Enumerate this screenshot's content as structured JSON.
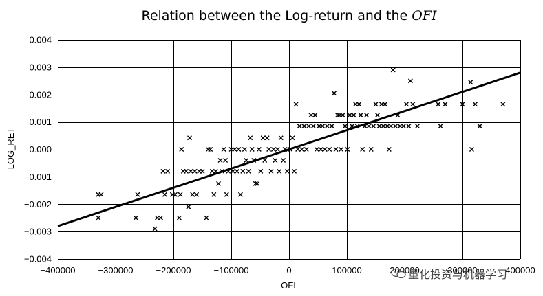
{
  "chart_data": {
    "type": "scatter",
    "title_prefix": "Relation between the Log-return and the ",
    "title_italic": "OFI",
    "xlabel": "OFI",
    "ylabel": "LOG_RET",
    "xlim": [
      -400000,
      400000
    ],
    "ylim": [
      -0.004,
      0.004
    ],
    "x_ticks": [
      -400000,
      -300000,
      -200000,
      -100000,
      0,
      100000,
      200000,
      300000,
      400000
    ],
    "x_tick_labels": [
      "−400000",
      "−300000",
      "−200000",
      "−100000",
      "0",
      "100000",
      "200000",
      "300000",
      "400000"
    ],
    "y_ticks": [
      -0.004,
      -0.003,
      -0.002,
      -0.001,
      0.0,
      0.001,
      0.002,
      0.003,
      0.004
    ],
    "y_tick_labels": [
      "−0.004",
      "−0.003",
      "−0.002",
      "−0.001",
      "0.000",
      "0.001",
      "0.002",
      "0.003",
      "0.004"
    ],
    "grid": true,
    "fit_line": {
      "x": [
        -400000,
        400000
      ],
      "y": [
        -0.0028,
        0.0028
      ]
    },
    "points": [
      [
        -330000,
        -0.00165
      ],
      [
        -325000,
        -0.00165
      ],
      [
        -330000,
        -0.0025
      ],
      [
        -265000,
        -0.0025
      ],
      [
        -262000,
        -0.00165
      ],
      [
        -232000,
        -0.0029
      ],
      [
        -228000,
        -0.0025
      ],
      [
        -222000,
        -0.0025
      ],
      [
        -218000,
        -0.0008
      ],
      [
        -215000,
        -0.00165
      ],
      [
        -210000,
        -0.0008
      ],
      [
        -202000,
        -0.00165
      ],
      [
        -197000,
        -0.00165
      ],
      [
        -190000,
        -0.0025
      ],
      [
        -188000,
        -0.00165
      ],
      [
        -186000,
        0.0
      ],
      [
        -183000,
        -0.0008
      ],
      [
        -178000,
        -0.0008
      ],
      [
        -174000,
        -0.0021
      ],
      [
        -172000,
        0.00042
      ],
      [
        -170000,
        -0.0008
      ],
      [
        -167000,
        -0.00165
      ],
      [
        -163000,
        -0.0008
      ],
      [
        -160000,
        -0.00165
      ],
      [
        -155000,
        -0.0008
      ],
      [
        -150000,
        -0.0008
      ],
      [
        -143000,
        -0.0025
      ],
      [
        -140000,
        0.0
      ],
      [
        -136000,
        0.0
      ],
      [
        -133000,
        -0.0008
      ],
      [
        -130000,
        -0.00165
      ],
      [
        -127000,
        -0.0008
      ],
      [
        -122000,
        -0.00125
      ],
      [
        -119000,
        -0.0004
      ],
      [
        -116000,
        -0.0008
      ],
      [
        -113000,
        0.0
      ],
      [
        -110000,
        -0.0004
      ],
      [
        -108000,
        -0.00165
      ],
      [
        -105000,
        -0.0008
      ],
      [
        -100000,
        0.0
      ],
      [
        -97000,
        -0.0008
      ],
      [
        -94000,
        0.0
      ],
      [
        -90000,
        -0.0008
      ],
      [
        -87000,
        0.0
      ],
      [
        -84000,
        -0.00165
      ],
      [
        -80000,
        -0.0008
      ],
      [
        -77000,
        0.0
      ],
      [
        -74000,
        -0.0004
      ],
      [
        -70000,
        -0.0008
      ],
      [
        -67000,
        0.00042
      ],
      [
        -64000,
        0.0
      ],
      [
        -61000,
        -0.0004
      ],
      [
        -58000,
        -0.00125
      ],
      [
        -55000,
        -0.00125
      ],
      [
        -52000,
        0.0
      ],
      [
        -49000,
        -0.0008
      ],
      [
        -45000,
        0.00042
      ],
      [
        -42000,
        -0.0004
      ],
      [
        -38000,
        0.00042
      ],
      [
        -35000,
        0.0
      ],
      [
        -31000,
        -0.0008
      ],
      [
        -27000,
        0.0
      ],
      [
        -24000,
        -0.0004
      ],
      [
        -20000,
        0.0
      ],
      [
        -17000,
        -0.0008
      ],
      [
        -14000,
        0.00042
      ],
      [
        -10000,
        -0.0004
      ],
      [
        -7000,
        0.0
      ],
      [
        -3000,
        -0.0008
      ],
      [
        2000,
        0.0
      ],
      [
        6000,
        0.00042
      ],
      [
        9000,
        -0.0008
      ],
      [
        12000,
        0.00165
      ],
      [
        15000,
        0.0
      ],
      [
        18000,
        0.00085
      ],
      [
        22000,
        0.0
      ],
      [
        26000,
        0.00085
      ],
      [
        30000,
        0.0
      ],
      [
        34000,
        0.00085
      ],
      [
        38000,
        0.00125
      ],
      [
        42000,
        0.00085
      ],
      [
        45000,
        0.00125
      ],
      [
        48000,
        0.0
      ],
      [
        52000,
        0.00085
      ],
      [
        55000,
        0.0
      ],
      [
        58000,
        0.00085
      ],
      [
        62000,
        0.0
      ],
      [
        66000,
        0.00085
      ],
      [
        70000,
        0.0
      ],
      [
        74000,
        0.00085
      ],
      [
        78000,
        0.00205
      ],
      [
        81000,
        0.0
      ],
      [
        84000,
        0.00125
      ],
      [
        87000,
        0.00125
      ],
      [
        90000,
        0.0
      ],
      [
        93000,
        0.00125
      ],
      [
        97000,
        0.00085
      ],
      [
        101000,
        0.0
      ],
      [
        105000,
        0.00125
      ],
      [
        109000,
        0.00085
      ],
      [
        112000,
        0.00125
      ],
      [
        115000,
        0.00165
      ],
      [
        118000,
        0.00085
      ],
      [
        121000,
        0.00165
      ],
      [
        124000,
        0.00125
      ],
      [
        127000,
        0.0
      ],
      [
        131000,
        0.00085
      ],
      [
        134000,
        0.00125
      ],
      [
        138000,
        0.00085
      ],
      [
        142000,
        0.0
      ],
      [
        146000,
        0.00085
      ],
      [
        150000,
        0.00165
      ],
      [
        153000,
        0.00125
      ],
      [
        156000,
        0.00085
      ],
      [
        160000,
        0.00165
      ],
      [
        163000,
        0.00085
      ],
      [
        166000,
        0.00165
      ],
      [
        170000,
        0.00085
      ],
      [
        173000,
        0.0
      ],
      [
        176000,
        0.00085
      ],
      [
        180000,
        0.0029
      ],
      [
        184000,
        0.00085
      ],
      [
        188000,
        0.00125
      ],
      [
        192000,
        0.00085
      ],
      [
        198000,
        0.00085
      ],
      [
        203000,
        0.00165
      ],
      [
        207000,
        0.00085
      ],
      [
        210000,
        0.0025
      ],
      [
        214000,
        0.00165
      ],
      [
        222000,
        0.00085
      ],
      [
        258000,
        0.00165
      ],
      [
        262000,
        0.00085
      ],
      [
        270000,
        0.00165
      ],
      [
        300000,
        0.00165
      ],
      [
        314000,
        0.00245
      ],
      [
        316000,
        0.0
      ],
      [
        322000,
        0.00165
      ],
      [
        330000,
        0.00085
      ],
      [
        370000,
        0.00165
      ]
    ]
  },
  "watermark": {
    "text": "量化投资与机器学习"
  }
}
